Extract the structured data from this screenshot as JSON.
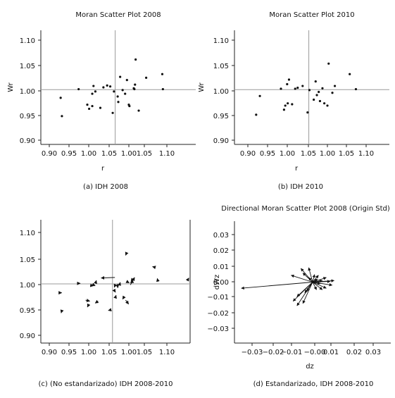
{
  "chart_data": [
    {
      "id": "a",
      "type": "scatter",
      "title": "Moran Scatter Plot 2008",
      "xlabel": "r",
      "ylabel": "Wr",
      "caption": "(a) IDH 2008",
      "x_ticks": [
        "0.90",
        "0.95",
        "1.00",
        "1.05",
        "1.00",
        "1.05",
        "1.10"
      ],
      "y_ticks": [
        "1.10",
        "1.05",
        "1.00",
        "0.95",
        "0.90"
      ],
      "xlim": [
        0.88,
        1.13
      ],
      "ylim": [
        0.88,
        1.13
      ],
      "x_ref": 1.0,
      "y_ref": 1.0,
      "points": [
        {
          "x": 0.912,
          "y": 0.982
        },
        {
          "x": 0.914,
          "y": 0.942
        },
        {
          "x": 0.941,
          "y": 1.001
        },
        {
          "x": 0.955,
          "y": 0.967
        },
        {
          "x": 0.958,
          "y": 0.958
        },
        {
          "x": 0.963,
          "y": 0.964
        },
        {
          "x": 0.963,
          "y": 0.991
        },
        {
          "x": 0.965,
          "y": 1.008
        },
        {
          "x": 0.968,
          "y": 0.996
        },
        {
          "x": 0.976,
          "y": 0.96
        },
        {
          "x": 0.981,
          "y": 1.005
        },
        {
          "x": 0.987,
          "y": 1.009
        },
        {
          "x": 0.992,
          "y": 1.007
        },
        {
          "x": 0.996,
          "y": 0.949
        },
        {
          "x": 0.998,
          "y": 0.996
        },
        {
          "x": 1.004,
          "y": 0.985
        },
        {
          "x": 1.005,
          "y": 0.973
        },
        {
          "x": 1.008,
          "y": 1.028
        },
        {
          "x": 1.012,
          "y": 0.999
        },
        {
          "x": 1.016,
          "y": 0.991
        },
        {
          "x": 1.019,
          "y": 1.021
        },
        {
          "x": 1.022,
          "y": 0.967
        },
        {
          "x": 1.023,
          "y": 0.964
        },
        {
          "x": 1.03,
          "y": 1.003
        },
        {
          "x": 1.031,
          "y": 1.001
        },
        {
          "x": 1.032,
          "y": 1.011
        },
        {
          "x": 1.033,
          "y": 1.066
        },
        {
          "x": 1.038,
          "y": 0.954
        },
        {
          "x": 1.05,
          "y": 1.026
        },
        {
          "x": 1.076,
          "y": 1.034
        },
        {
          "x": 1.077,
          "y": 1.001
        }
      ]
    },
    {
      "id": "b",
      "type": "scatter",
      "title": "Moran Scatter Plot 2010",
      "xlabel": "r",
      "ylabel": "Wr",
      "caption": "(b) IDH 2010",
      "x_ticks": [
        "0.90",
        "0.95",
        "1.00",
        "1.05",
        "1.00",
        "1.05",
        "1.10"
      ],
      "y_ticks": [
        "1.10",
        "1.05",
        "1.00",
        "0.95",
        "0.90"
      ],
      "xlim": [
        0.88,
        1.13
      ],
      "ylim": [
        0.88,
        1.13
      ],
      "x_ref": 1.0,
      "y_ref": 1.0,
      "points": [
        {
          "x": 0.915,
          "y": 0.945
        },
        {
          "x": 0.921,
          "y": 0.986
        },
        {
          "x": 0.955,
          "y": 1.002
        },
        {
          "x": 0.96,
          "y": 0.956
        },
        {
          "x": 0.962,
          "y": 0.965
        },
        {
          "x": 0.965,
          "y": 1.012
        },
        {
          "x": 0.966,
          "y": 0.97
        },
        {
          "x": 0.968,
          "y": 1.022
        },
        {
          "x": 0.973,
          "y": 0.968
        },
        {
          "x": 0.978,
          "y": 1.002
        },
        {
          "x": 0.982,
          "y": 1.004
        },
        {
          "x": 0.99,
          "y": 1.008
        },
        {
          "x": 0.998,
          "y": 0.95
        },
        {
          "x": 1.001,
          "y": 0.999
        },
        {
          "x": 1.008,
          "y": 0.978
        },
        {
          "x": 1.011,
          "y": 1.018
        },
        {
          "x": 1.013,
          "y": 0.988
        },
        {
          "x": 1.016,
          "y": 0.995
        },
        {
          "x": 1.018,
          "y": 0.975
        },
        {
          "x": 1.022,
          "y": 1.003
        },
        {
          "x": 1.025,
          "y": 0.97
        },
        {
          "x": 1.03,
          "y": 0.965
        },
        {
          "x": 1.032,
          "y": 1.057
        },
        {
          "x": 1.038,
          "y": 0.993
        },
        {
          "x": 1.042,
          "y": 1.008
        },
        {
          "x": 1.066,
          "y": 1.034
        },
        {
          "x": 1.076,
          "y": 1.001
        }
      ]
    },
    {
      "id": "c",
      "type": "scatter",
      "title": "",
      "xlabel": "",
      "ylabel": "",
      "caption": "(c) (No estandarizado) IDH 2008-2010",
      "x_ticks": [
        "0.90",
        "0.95",
        "1.00",
        "1.05",
        "1.00",
        "1.05",
        "1.10"
      ],
      "y_ticks": [
        "1.10",
        "1.05",
        "1.00",
        "0.95",
        "0.90"
      ],
      "xlim": [
        0.88,
        1.13
      ],
      "ylim": [
        0.88,
        1.13
      ],
      "x_ref": 1.0,
      "y_ref": 1.0,
      "arrows": [
        {
          "x1": 0.912,
          "y1": 0.982,
          "x2": 0.915,
          "y2": 0.982
        },
        {
          "x1": 0.915,
          "y1": 0.945,
          "x2": 0.914,
          "y2": 0.941
        },
        {
          "x1": 0.941,
          "y1": 1.001,
          "x2": 0.946,
          "y2": 1.001
        },
        {
          "x1": 0.955,
          "y1": 0.967,
          "x2": 0.962,
          "y2": 0.965
        },
        {
          "x1": 0.96,
          "y1": 0.958,
          "x2": 0.958,
          "y2": 0.953
        },
        {
          "x1": 0.963,
          "y1": 0.997,
          "x2": 0.968,
          "y2": 0.996
        },
        {
          "x1": 0.968,
          "y1": 0.998,
          "x2": 0.971,
          "y2": 0.996
        },
        {
          "x1": 0.972,
          "y1": 1.003,
          "x2": 0.973,
          "y2": 1.007
        },
        {
          "x1": 0.976,
          "y1": 0.965,
          "x2": 0.971,
          "y2": 0.961
        },
        {
          "x1": 1.004,
          "y1": 1.013,
          "x2": 0.981,
          "y2": 1.012
        },
        {
          "x1": 0.996,
          "y1": 0.947,
          "x2": 0.993,
          "y2": 0.946
        },
        {
          "x1": 1.005,
          "y1": 0.999,
          "x2": 1.003,
          "y2": 0.993
        },
        {
          "x1": 1.004,
          "y1": 0.985,
          "x2": 1.005,
          "y2": 0.983
        },
        {
          "x1": 1.005,
          "y1": 0.973,
          "x2": 1.006,
          "y2": 0.977
        },
        {
          "x1": 1.008,
          "y1": 1.0,
          "x2": 1.009,
          "y2": 0.992
        },
        {
          "x1": 1.012,
          "y1": 0.999,
          "x2": 1.013,
          "y2": 1.003
        },
        {
          "x1": 1.019,
          "y1": 0.973,
          "x2": 1.017,
          "y2": 0.969
        },
        {
          "x1": 1.022,
          "y1": 0.967,
          "x2": 1.027,
          "y2": 0.959
        },
        {
          "x1": 1.023,
          "y1": 1.061,
          "x2": 1.022,
          "y2": 1.058
        },
        {
          "x1": 1.025,
          "y1": 1.004,
          "x2": 1.028,
          "y2": 1.002
        },
        {
          "x1": 1.03,
          "y1": 0.998,
          "x2": 1.037,
          "y2": 1.013
        },
        {
          "x1": 1.033,
          "y1": 1.004,
          "x2": 1.03,
          "y2": 1.002
        },
        {
          "x1": 1.034,
          "y1": 1.01,
          "x2": 1.031,
          "y2": 1.005
        },
        {
          "x1": 1.07,
          "y1": 1.034,
          "x2": 1.067,
          "y2": 1.035
        },
        {
          "x1": 1.076,
          "y1": 1.006,
          "x2": 1.075,
          "y2": 1.011
        },
        {
          "x1": 1.127,
          "y1": 1.01,
          "x2": 1.128,
          "y2": 1.012
        }
      ]
    },
    {
      "id": "d",
      "type": "scatter",
      "title": "Directional Moran Scatter Plot 2008 (Origin Std)",
      "xlabel": "dz",
      "ylabel": "dWz",
      "caption": "(d) Estandarizado, IDH 2008-2010",
      "x_ticks": [
        "−0.03",
        "−0.02",
        "−0.01",
        "−0.00",
        "0.01",
        "0.02",
        "0.03"
      ],
      "y_ticks": [
        "0.03",
        "0.02",
        "0.01",
        "0.00",
        "−0.01",
        "−0.02",
        "−0.03"
      ],
      "xlim": [
        -0.04,
        0.04
      ],
      "ylim": [
        -0.04,
        0.04
      ],
      "arrows": [
        {
          "dx": -0.0365,
          "dy": -0.004
        },
        {
          "dx": -0.008,
          "dy": -0.0155
        },
        {
          "dx": -0.01,
          "dy": -0.0125
        },
        {
          "dx": -0.005,
          "dy": -0.014
        },
        {
          "dx": -0.008,
          "dy": -0.0095
        },
        {
          "dx": -0.004,
          "dy": -0.007
        },
        {
          "dx": -0.011,
          "dy": 0.0045
        },
        {
          "dx": -0.006,
          "dy": 0.009
        },
        {
          "dx": -0.002,
          "dy": 0.0095
        },
        {
          "dx": -0.005,
          "dy": 0.006
        },
        {
          "dx": -0.003,
          "dy": -0.006
        },
        {
          "dx": 0.002,
          "dy": -0.005
        },
        {
          "dx": 0.005,
          "dy": -0.005
        },
        {
          "dx": 0.007,
          "dy": -0.004
        },
        {
          "dx": 0.01,
          "dy": -0.002
        },
        {
          "dx": 0.011,
          "dy": 0.001
        },
        {
          "dx": 0.007,
          "dy": 0.003
        },
        {
          "dx": 0.003,
          "dy": 0.0045
        },
        {
          "dx": 0.001,
          "dy": 0.005
        },
        {
          "dx": 0.005,
          "dy": 0.001
        },
        {
          "dx": -0.002,
          "dy": 0.003
        },
        {
          "dx": 0.004,
          "dy": -0.001
        },
        {
          "dx": 0.009,
          "dy": 0.0005
        },
        {
          "dx": 0.0025,
          "dy": 0.002
        }
      ]
    }
  ]
}
